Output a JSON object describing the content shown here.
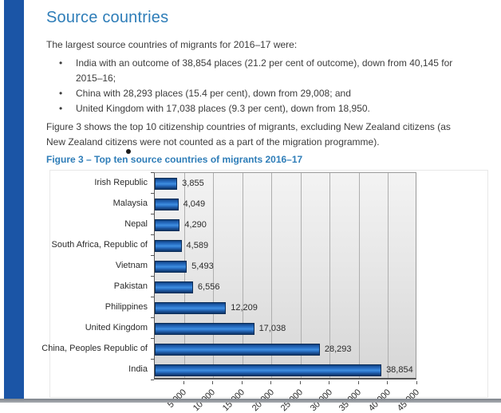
{
  "page": {
    "title": "Source countries",
    "intro": "The largest source countries of migrants for 2016–17 were:",
    "bullets": [
      "India with an outcome of 38,854 places (21.2 per cent of outcome), down from 40,145 for 2015–16;",
      "China with 28,293 places (15.4 per cent), down from 29,008; and",
      "United Kingdom with 17,038 places (9.3 per cent), down from 18,950."
    ],
    "figure_note": "Figure 3 shows the top 10 citizenship countries of migrants, excluding New Zealand citizens (as New Zealand citizens were not counted as a part of the migration programme).",
    "figure_caption": "Figure 3 – Top ten source countries of migrants 2016–17"
  },
  "colors": {
    "accent_blue": "#2e7db8",
    "sidebar_stripe_blue": "#1b55a6",
    "bar_fill_blue": "#1e5fae",
    "bar_border_navy": "#0b2d57",
    "plot_background_gray": "#e7e7e7"
  },
  "chart_data": {
    "type": "bar",
    "orientation": "horizontal",
    "title": "Figure 3 – Top ten source countries of migrants 2016–17",
    "categories": [
      "Irish Republic",
      "Malaysia",
      "Nepal",
      "South Africa, Republic of",
      "Vietnam",
      "Pakistan",
      "Philippines",
      "United Kingdom",
      "China, Peoples Republic of",
      "India"
    ],
    "values": [
      3855,
      4049,
      4290,
      4589,
      5493,
      6556,
      12209,
      17038,
      28293,
      38854
    ],
    "value_labels": [
      "3,855",
      "4,049",
      "4,290",
      "4,589",
      "5,493",
      "6,556",
      "12,209",
      "17,038",
      "28,293",
      "38,854"
    ],
    "x_tick_values": [
      5000,
      10000,
      15000,
      20000,
      25000,
      30000,
      35000,
      40000,
      45000
    ],
    "x_tick_labels": [
      "5 000",
      "10 000",
      "15 000",
      "20 000",
      "25 000",
      "30 000",
      "35 000",
      "40 000",
      "45 000"
    ],
    "xlim": [
      0,
      45000
    ],
    "grid": true,
    "legend": false,
    "xlabel": "",
    "ylabel": ""
  }
}
